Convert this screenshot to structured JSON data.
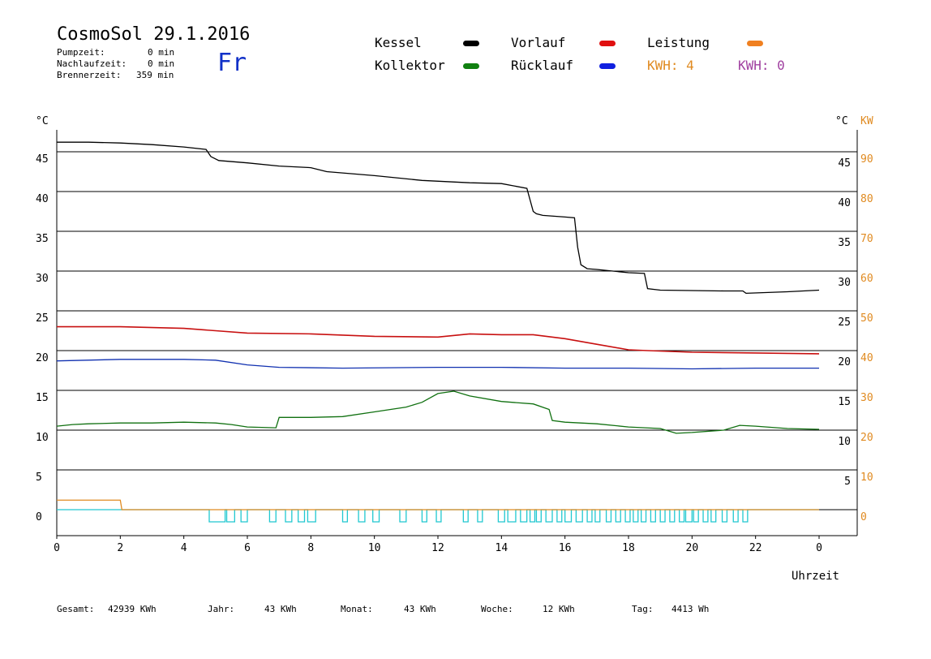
{
  "header": {
    "title": "CosmoSol 29.1.2016",
    "stats": [
      {
        "label": "Pumpzeit:",
        "value": "0 min"
      },
      {
        "label": "Nachlaufzeit:",
        "value": "0 min"
      },
      {
        "label": "Brennerzeit:",
        "value": "359 min"
      }
    ],
    "day": "Fr"
  },
  "legend": {
    "kessel": "Kessel",
    "kollektor": "Kollektor",
    "vorlauf": "Vorlauf",
    "ruecklauf": "Rücklauf",
    "leistung": "Leistung",
    "kwh1": "KWH: 4",
    "kwh2": "KWH: 0"
  },
  "colors": {
    "kessel": "#000000",
    "vorlauf": "#e01010",
    "leistung": "#f08020",
    "kollektor": "#108010",
    "ruecklauf": "#1020e0",
    "kwh1": "#e08a20",
    "kwh2": "#a040a0",
    "pump": "#20c8d0",
    "power": "#e08a20",
    "vorlauf_line": "#c81010",
    "ruecklauf_line": "#1030b0",
    "kollektor_line": "#107010"
  },
  "footer": [
    {
      "label": "Gesamt:",
      "value": "42939 KWh"
    },
    {
      "label": "Jahr:",
      "value": "43 KWh"
    },
    {
      "label": "Monat:",
      "value": "43 KWh"
    },
    {
      "label": "Woche:",
      "value": "12 KWh"
    },
    {
      "label": "Tag:",
      "value": "4413 Wh"
    }
  ],
  "chart_data": {
    "type": "line",
    "xlabel": "Uhrzeit",
    "ylabel_left": "°C",
    "ylabel_right": "°C",
    "ylabel_right2": "KW",
    "xlim": [
      0,
      24
    ],
    "ylim": [
      -3,
      50
    ],
    "x_ticks": [
      "0",
      "2",
      "4",
      "6",
      "8",
      "10",
      "12",
      "14",
      "16",
      "18",
      "20",
      "22",
      "0"
    ],
    "y_ticks_left": [
      "0",
      "5",
      "10",
      "15",
      "20",
      "25",
      "30",
      "35",
      "40",
      "45"
    ],
    "y_ticks_right": [
      "5",
      "10",
      "15",
      "20",
      "25",
      "30",
      "35",
      "40",
      "45"
    ],
    "y_ticks_kw": [
      "0",
      "10",
      "20",
      "30",
      "40",
      "50",
      "60",
      "70",
      "80",
      "90"
    ],
    "series": [
      {
        "name": "Kessel",
        "x": [
          0,
          1,
          2,
          3,
          4,
          4.7,
          4.85,
          5.1,
          6,
          7,
          8,
          8.5,
          10,
          11.5,
          13,
          14,
          14.8,
          15,
          15.1,
          15.3,
          16,
          16.3,
          16.4,
          16.5,
          16.7,
          17,
          18,
          18.5,
          18.6,
          19,
          21,
          21.6,
          21.7,
          23,
          24
        ],
        "y": [
          46.2,
          46.2,
          46.1,
          45.9,
          45.6,
          45.3,
          44.4,
          43.9,
          43.6,
          43.2,
          43,
          42.5,
          42,
          41.4,
          41.1,
          41,
          40.4,
          37.5,
          37.2,
          37,
          36.8,
          36.7,
          33,
          30.8,
          30.3,
          30.2,
          29.8,
          29.7,
          27.8,
          27.6,
          27.5,
          27.5,
          27.2,
          27.4,
          27.6
        ]
      },
      {
        "name": "Vorlauf",
        "x": [
          0,
          2,
          4,
          5,
          6,
          8,
          10,
          12,
          13,
          14,
          15,
          16,
          17,
          18,
          18.6,
          20,
          22,
          24
        ],
        "y": [
          23,
          23,
          22.8,
          22.5,
          22.2,
          22.1,
          21.8,
          21.7,
          22.1,
          22,
          22,
          21.5,
          20.8,
          20.1,
          20,
          19.8,
          19.7,
          19.6
        ]
      },
      {
        "name": "Rücklauf",
        "x": [
          0,
          2,
          4,
          5,
          6,
          7,
          9,
          12,
          14,
          16,
          18,
          20,
          22,
          24
        ],
        "y": [
          18.7,
          18.9,
          18.9,
          18.8,
          18.2,
          17.9,
          17.8,
          17.9,
          17.9,
          17.8,
          17.8,
          17.7,
          17.8,
          17.8
        ]
      },
      {
        "name": "Kollektor",
        "x": [
          0,
          0.5,
          1,
          2,
          3,
          4,
          5,
          5.5,
          6,
          6.9,
          7,
          8,
          9,
          10,
          11,
          11.5,
          12,
          12.5,
          13,
          14,
          15,
          15.5,
          15.6,
          16,
          17,
          18,
          19,
          19.5,
          20,
          21,
          21.5,
          22,
          23,
          24
        ],
        "y": [
          10.5,
          10.7,
          10.8,
          10.9,
          10.9,
          11,
          10.9,
          10.7,
          10.4,
          10.3,
          11.6,
          11.6,
          11.7,
          12.3,
          12.9,
          13.5,
          14.6,
          14.9,
          14.3,
          13.6,
          13.3,
          12.6,
          11.2,
          11,
          10.8,
          10.4,
          10.2,
          9.6,
          9.7,
          10,
          10.6,
          10.5,
          10.2,
          10.1
        ]
      },
      {
        "name": "Leistung",
        "x": [
          0,
          2,
          2.05,
          24
        ],
        "y": [
          1.2,
          1.2,
          0,
          0
        ]
      }
    ],
    "pump_cycles": [
      [
        4.8,
        5.3
      ],
      [
        5.35,
        5.6
      ],
      [
        5.8,
        6.0
      ],
      [
        6.7,
        6.9
      ],
      [
        7.2,
        7.4
      ],
      [
        7.6,
        7.8
      ],
      [
        7.9,
        8.15
      ],
      [
        9.0,
        9.15
      ],
      [
        9.5,
        9.7
      ],
      [
        9.95,
        10.15
      ],
      [
        10.8,
        11.0
      ],
      [
        11.5,
        11.65
      ],
      [
        11.95,
        12.1
      ],
      [
        12.8,
        12.95
      ],
      [
        13.25,
        13.4
      ],
      [
        13.9,
        14.1
      ],
      [
        14.2,
        14.45
      ],
      [
        14.6,
        14.8
      ],
      [
        14.9,
        15.05
      ],
      [
        15.1,
        15.25
      ],
      [
        15.4,
        15.6
      ],
      [
        15.75,
        15.9
      ],
      [
        16.0,
        16.2
      ],
      [
        16.35,
        16.55
      ],
      [
        16.7,
        16.85
      ],
      [
        16.95,
        17.1
      ],
      [
        17.3,
        17.45
      ],
      [
        17.6,
        17.75
      ],
      [
        17.9,
        18.05
      ],
      [
        18.15,
        18.3
      ],
      [
        18.4,
        18.55
      ],
      [
        18.7,
        18.85
      ],
      [
        19.0,
        19.15
      ],
      [
        19.3,
        19.45
      ],
      [
        19.6,
        19.75
      ],
      [
        19.8,
        20.0
      ],
      [
        20.05,
        20.2
      ],
      [
        20.35,
        20.5
      ],
      [
        20.6,
        20.75
      ],
      [
        20.95,
        21.1
      ],
      [
        21.3,
        21.45
      ],
      [
        21.6,
        21.75
      ]
    ]
  }
}
